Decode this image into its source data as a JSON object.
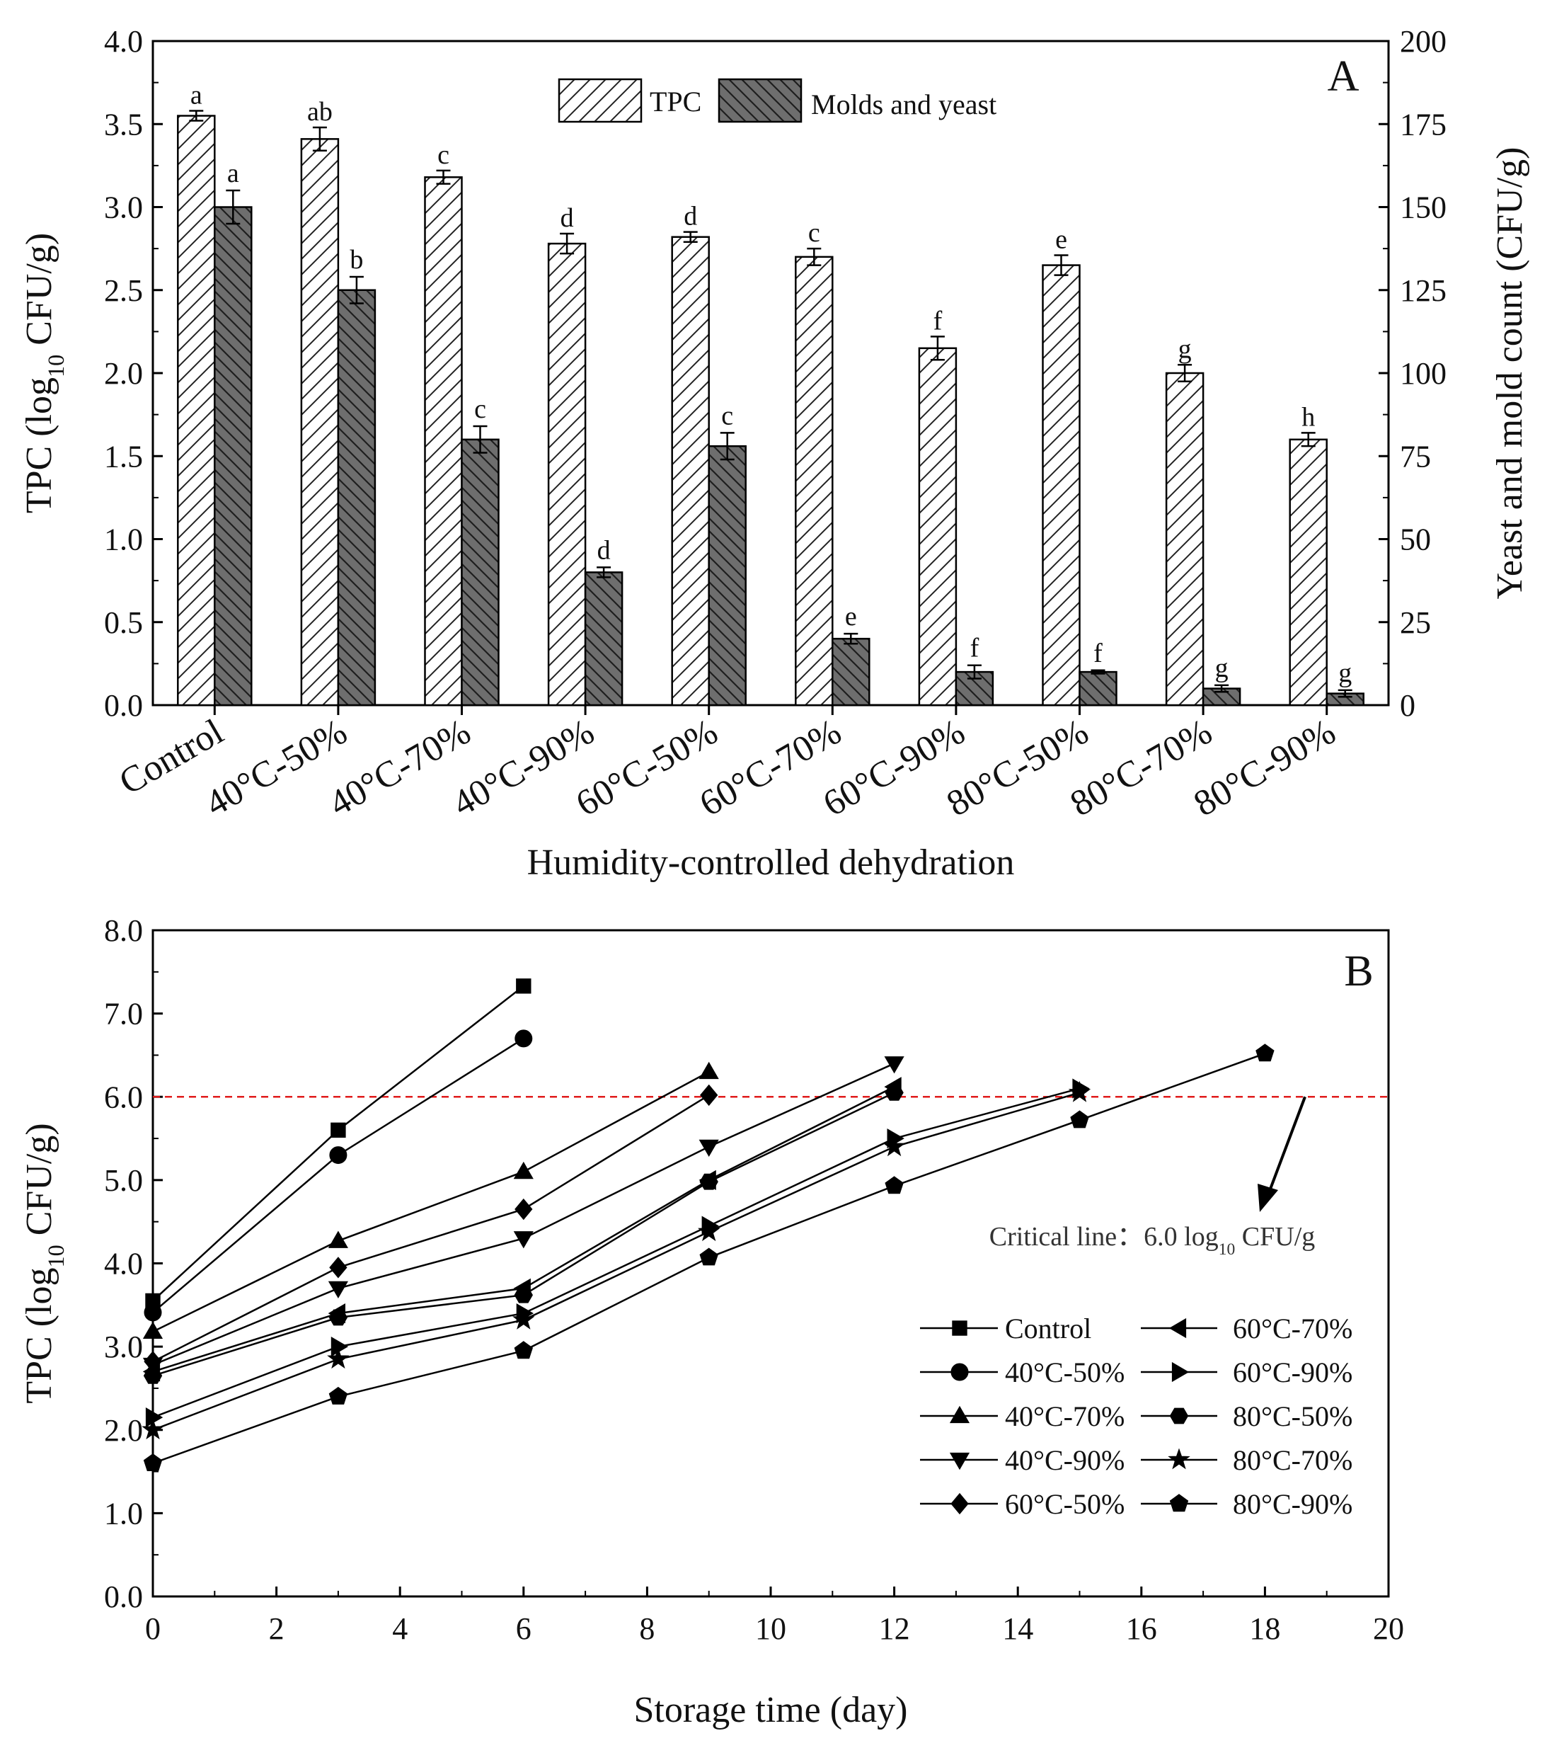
{
  "chart_data": [
    {
      "panel": "A",
      "type": "bar",
      "xlabel": "Humidity-controlled dehydration",
      "ylabel": "TPC (log10 CFU/g)",
      "ylabel_right": "Yeast and mold count (CFU/g)",
      "ylim": [
        0,
        4.0
      ],
      "ylim_right": [
        0,
        200
      ],
      "yticks": [
        "0.0",
        "0.5",
        "1.0",
        "1.5",
        "2.0",
        "2.5",
        "3.0",
        "3.5",
        "4.0"
      ],
      "yticks_right": [
        "0",
        "25",
        "50",
        "75",
        "100",
        "125",
        "150",
        "175",
        "200"
      ],
      "categories": [
        "Control",
        "40°C-50%",
        "40°C-70%",
        "40°C-90%",
        "60°C-50%",
        "60°C-70%",
        "60°C-90%",
        "80°C-50%",
        "80°C-70%",
        "80°C-90%"
      ],
      "legend": [
        "TPC",
        "Molds and yeast"
      ],
      "series": [
        {
          "name": "TPC",
          "axis": "left",
          "fill": "hatch-forward",
          "values": [
            3.55,
            3.41,
            3.18,
            2.78,
            2.82,
            2.7,
            2.15,
            2.65,
            2.0,
            1.6
          ],
          "errors": [
            0.03,
            0.07,
            0.04,
            0.06,
            0.03,
            0.05,
            0.07,
            0.06,
            0.05,
            0.04
          ],
          "letters": [
            "a",
            "ab",
            "c",
            "d",
            "d",
            "c",
            "f",
            "e",
            "g",
            "h"
          ]
        },
        {
          "name": "Molds and yeast",
          "axis": "right",
          "fill": "hatch-back-gray",
          "values": [
            150,
            125,
            80,
            40,
            78,
            20,
            10,
            10,
            5,
            3.5
          ],
          "errors": [
            5,
            4,
            4,
            1.5,
            4,
            1.5,
            2,
            0.5,
            1,
            1
          ],
          "letters": [
            "a",
            "b",
            "c",
            "d",
            "c",
            "e",
            "f",
            "f",
            "g",
            "g"
          ]
        }
      ]
    },
    {
      "panel": "B",
      "type": "line",
      "xlabel": "Storage time (day)",
      "ylabel": "TPC (log10 CFU/g)",
      "xlim": [
        0,
        20
      ],
      "ylim": [
        0,
        8.0
      ],
      "xticks": [
        "0",
        "2",
        "4",
        "6",
        "8",
        "10",
        "12",
        "14",
        "16",
        "18",
        "20"
      ],
      "yticks": [
        "0.0",
        "1.0",
        "2.0",
        "3.0",
        "4.0",
        "5.0",
        "6.0",
        "7.0",
        "8.0"
      ],
      "critical_line": {
        "value": 6.0,
        "label": "Critical line：6.0 log10 CFU/g"
      },
      "series": [
        {
          "name": "Control",
          "marker": "square",
          "x": [
            0,
            3,
            6
          ],
          "y": [
            3.55,
            5.6,
            7.33
          ]
        },
        {
          "name": "40°C-50%",
          "marker": "circle",
          "x": [
            0,
            3,
            6
          ],
          "y": [
            3.41,
            5.3,
            6.7
          ]
        },
        {
          "name": "40°C-70%",
          "marker": "triangle-up",
          "x": [
            0,
            3,
            6,
            9
          ],
          "y": [
            3.18,
            4.27,
            5.1,
            6.3
          ]
        },
        {
          "name": "40°C-90%",
          "marker": "triangle-down",
          "x": [
            0,
            3,
            6,
            9,
            12
          ],
          "y": [
            2.78,
            3.7,
            4.3,
            5.4,
            6.4
          ]
        },
        {
          "name": "60°C-50%",
          "marker": "diamond",
          "x": [
            0,
            3,
            6,
            9
          ],
          "y": [
            2.82,
            3.95,
            4.65,
            6.02
          ]
        },
        {
          "name": "60°C-70%",
          "marker": "triangle-left",
          "x": [
            0,
            3,
            6,
            9,
            12
          ],
          "y": [
            2.7,
            3.4,
            3.7,
            5.0,
            6.12
          ]
        },
        {
          "name": "60°C-90%",
          "marker": "triangle-right",
          "x": [
            0,
            3,
            6,
            9,
            12,
            15
          ],
          "y": [
            2.15,
            3.0,
            3.4,
            4.45,
            5.5,
            6.1
          ]
        },
        {
          "name": "80°C-50%",
          "marker": "hexagon",
          "x": [
            0,
            3,
            6,
            9,
            12
          ],
          "y": [
            2.65,
            3.35,
            3.62,
            4.98,
            6.05
          ]
        },
        {
          "name": "80°C-70%",
          "marker": "star",
          "x": [
            0,
            3,
            6,
            9,
            12,
            15
          ],
          "y": [
            2.0,
            2.85,
            3.32,
            4.38,
            5.4,
            6.05
          ]
        },
        {
          "name": "80°C-90%",
          "marker": "pentagon",
          "x": [
            0,
            3,
            6,
            9,
            12,
            15,
            18
          ],
          "y": [
            1.6,
            2.4,
            2.95,
            4.07,
            4.93,
            5.72,
            6.52
          ]
        }
      ]
    }
  ]
}
